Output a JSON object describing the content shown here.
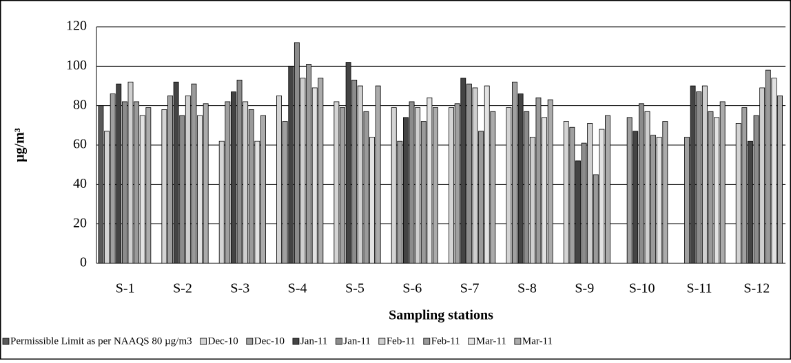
{
  "chart_data": {
    "type": "bar",
    "y_label": "μg/m³",
    "x_label": "Sampling stations",
    "categories": [
      "S-1",
      "S-2",
      "S-3",
      "S-4",
      "S-5",
      "S-6",
      "S-7",
      "S-8",
      "S-9",
      "S-10",
      "S-11",
      "S-12"
    ],
    "ylim": [
      0,
      120
    ],
    "yticks": [
      0,
      20,
      40,
      60,
      80,
      100,
      120
    ],
    "grid": true,
    "series": [
      {
        "name": "Permissible Limit as per NAAQS 80 µg/m3",
        "color": "#5a5a5a",
        "values": [
          80,
          null,
          null,
          null,
          null,
          null,
          null,
          null,
          null,
          null,
          null,
          null
        ]
      },
      {
        "name": "Dec-10",
        "color": "#d4d4d4",
        "values": [
          67,
          78,
          62,
          85,
          82,
          79,
          79,
          79,
          72,
          null,
          null,
          71
        ]
      },
      {
        "name": "Dec-10",
        "color": "#a0a0a0",
        "values": [
          86,
          85,
          82,
          72,
          79,
          62,
          81,
          92,
          69,
          74,
          64,
          79
        ]
      },
      {
        "name": "Jan-11",
        "color": "#444444",
        "values": [
          91,
          92,
          87,
          100,
          102,
          74,
          94,
          86,
          52,
          67,
          90,
          62
        ]
      },
      {
        "name": "Jan-11",
        "color": "#8c8c8c",
        "values": [
          82,
          75,
          93,
          112,
          93,
          82,
          91,
          77,
          61,
          81,
          87,
          75
        ]
      },
      {
        "name": "Feb-11",
        "color": "#cfcfcf",
        "values": [
          92,
          85,
          82,
          94,
          90,
          79,
          89,
          64,
          71,
          77,
          90,
          89
        ]
      },
      {
        "name": "Feb-11",
        "color": "#9a9a9a",
        "values": [
          82,
          91,
          78,
          101,
          77,
          72,
          67,
          84,
          45,
          65,
          77,
          98
        ]
      },
      {
        "name": "Mar-11",
        "color": "#e2e2e2",
        "values": [
          75,
          75,
          62,
          89,
          64,
          84,
          90,
          74,
          68,
          64,
          74,
          94
        ]
      },
      {
        "name": "Mar-11",
        "color": "#ababab",
        "values": [
          79,
          81,
          75,
          94,
          90,
          79,
          77,
          83,
          75,
          72,
          82,
          85
        ]
      }
    ]
  }
}
